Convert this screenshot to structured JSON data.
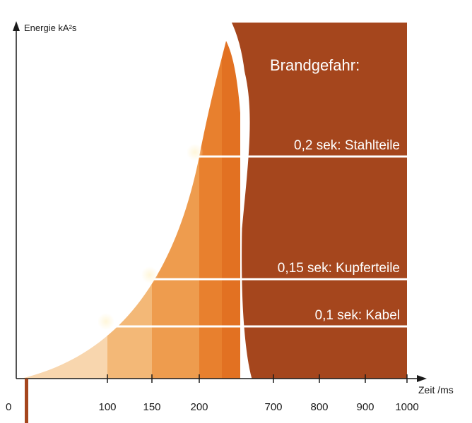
{
  "chart_data": {
    "type": "area",
    "ylabel": "Energie kA²s",
    "xlabel": "Zeit",
    "xunit": "ms",
    "x_ticks": [
      "0",
      "100",
      "150",
      "200",
      "700",
      "800",
      "900",
      "1000"
    ],
    "panel_title": "Brandgefahr:",
    "thresholds": [
      {
        "label": "0,1 sek: Kabel",
        "time_ms": 100
      },
      {
        "label": "0,15 sek: Kupferteile",
        "time_ms": 150
      },
      {
        "label": "0,2 sek: Stahlteile",
        "time_ms": 200
      }
    ],
    "grid": false,
    "legend": "none",
    "colors": {
      "panel": "#a5461d",
      "band1": "#f8d6ae",
      "band2": "#f3b877",
      "band3": "#ee9c4e",
      "band4": "#e8802e",
      "band5": "#e27122",
      "axis": "#1a1a1a",
      "marker": "#a5461d"
    }
  }
}
